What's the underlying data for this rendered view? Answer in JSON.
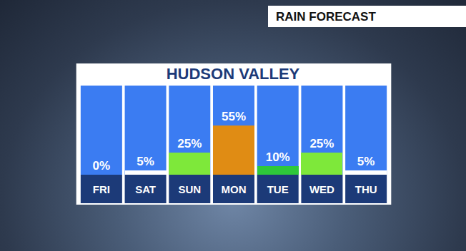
{
  "chart_data": {
    "type": "bar",
    "title": "HUDSON VALLEY",
    "annotations": [
      "RAIN FORECAST"
    ],
    "categories": [
      "FRI",
      "SAT",
      "SUN",
      "MON",
      "TUE",
      "WED",
      "THU"
    ],
    "values": [
      0,
      5,
      25,
      55,
      10,
      25,
      5
    ],
    "value_labels": [
      "0%",
      "5%",
      "25%",
      "55%",
      "10%",
      "25%",
      "5%"
    ],
    "colors": [
      "#ffffff",
      "#ffffff",
      "#7ee83a",
      "#e08c14",
      "#2ec83a",
      "#7ee83a",
      "#ffffff"
    ],
    "ylim": [
      0,
      100
    ],
    "grid": false,
    "data_labels": true,
    "tick_labels": "x"
  }
}
